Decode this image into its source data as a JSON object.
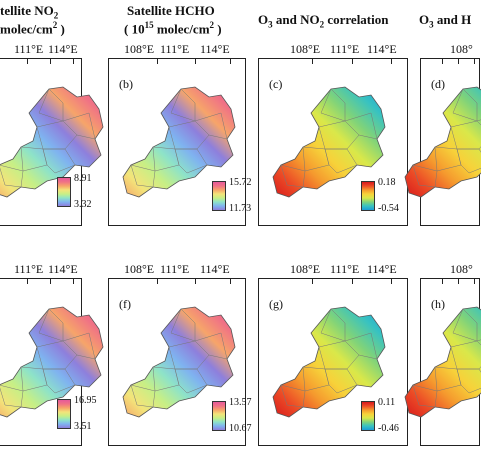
{
  "titles": {
    "col_a_line1": "tellite NO",
    "col_a_sub1": "2",
    "col_a_line2": " molec/cm",
    "col_a_sup2": "2",
    "col_a_close": " )",
    "col_b_line1": "Satellite HCHO",
    "col_b_open": "( 10",
    "col_b_sup1": "15",
    "col_b_mid": " molec/cm",
    "col_b_sup2": "2",
    "col_b_close": " )",
    "col_c_pre": "O",
    "col_c_sub1": "3",
    "col_c_mid": " and NO",
    "col_c_sub2": "2",
    "col_c_post": " correlation",
    "col_d_pre": "O",
    "col_d_sub": "3",
    "col_d_post": " and H"
  },
  "ticks": {
    "a_top": [
      "111°E",
      "114°E"
    ],
    "b_top": [
      "108°E",
      "111°E",
      "114°E"
    ],
    "c_top": [
      "108°E",
      "111°E",
      "114°E"
    ],
    "d_top": [
      "108°"
    ],
    "a_bot": [
      "111°E",
      "114°E"
    ],
    "b_bot": [
      "108°E",
      "111°E",
      "114°E"
    ],
    "c_bot": [
      "108°E",
      "111°E",
      "114°E"
    ],
    "d_bot": [
      "108°"
    ]
  },
  "panels": [
    {
      "id": "a",
      "label": "",
      "cb_max": "8.91",
      "cb_min": "3.32",
      "cmap": "rainbow"
    },
    {
      "id": "b",
      "label": "(b)",
      "cb_max": "15.72",
      "cb_min": "11.73",
      "cmap": "rainbow"
    },
    {
      "id": "c",
      "label": "(c)",
      "cb_max": "0.18",
      "cb_min": "-0.54",
      "cmap": "diverging"
    },
    {
      "id": "d",
      "label": "(d)",
      "cb_max": "",
      "cb_min": "",
      "cmap": "diverging"
    },
    {
      "id": "e",
      "label": "",
      "cb_max": "16.95",
      "cb_min": "3.51",
      "cmap": "rainbow"
    },
    {
      "id": "f",
      "label": "(f)",
      "cb_max": "13.57",
      "cb_min": "10.67",
      "cmap": "rainbow"
    },
    {
      "id": "g",
      "label": "(g)",
      "cb_max": "0.11",
      "cb_min": "-0.46",
      "cmap": "diverging"
    },
    {
      "id": "h",
      "label": "(h)",
      "cb_max": "",
      "cb_min": "",
      "cmap": "diverging"
    }
  ],
  "colors": {
    "rainbow": [
      "#8e7fdc",
      "#7fb3f0",
      "#8ee3c8",
      "#c7ef86",
      "#f3e47a",
      "#f6a56a",
      "#f07285",
      "#e65a9a"
    ],
    "diverging": [
      "#1a9bd7",
      "#37c2c2",
      "#7fd37a",
      "#d9e84a",
      "#f7d23a",
      "#f59a2e",
      "#ec4b26",
      "#d7191c"
    ]
  }
}
